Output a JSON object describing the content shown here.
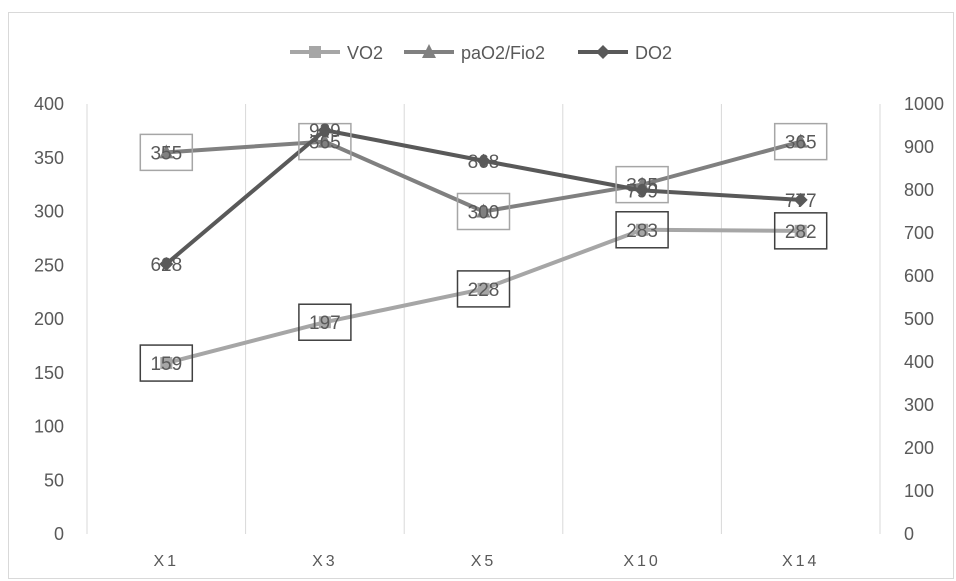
{
  "chart_data": {
    "type": "line",
    "categories": [
      "X1",
      "X3",
      "X5",
      "X10",
      "X14"
    ],
    "y_left": {
      "ticks": [
        0,
        50,
        100,
        150,
        200,
        250,
        300,
        350,
        400
      ],
      "min": 0,
      "max": 400
    },
    "y_right": {
      "ticks": [
        0,
        100,
        200,
        300,
        400,
        500,
        600,
        700,
        800,
        900,
        1000
      ],
      "min": 0,
      "max": 1000
    },
    "grid": "vertical",
    "legend_position": "top",
    "series": [
      {
        "name": "VO2",
        "axis": "left",
        "values": [
          159,
          197,
          228,
          283,
          282
        ],
        "labels": [
          "159",
          "197",
          "228",
          "283",
          "282"
        ],
        "color": "#a6a6a6",
        "marker": "square"
      },
      {
        "name": "paO2/Fio2",
        "axis": "left",
        "values": [
          355,
          365,
          300,
          325,
          365
        ],
        "labels": [
          "355",
          "365",
          "300",
          "325",
          "365"
        ],
        "color": "#808080",
        "marker": "triangle"
      },
      {
        "name": "DO2",
        "axis": "right",
        "values": [
          628,
          939,
          868,
          799,
          777
        ],
        "labels": [
          "628",
          "939",
          "868",
          "799",
          "777"
        ],
        "color": "#595959",
        "marker": "diamond"
      }
    ]
  }
}
